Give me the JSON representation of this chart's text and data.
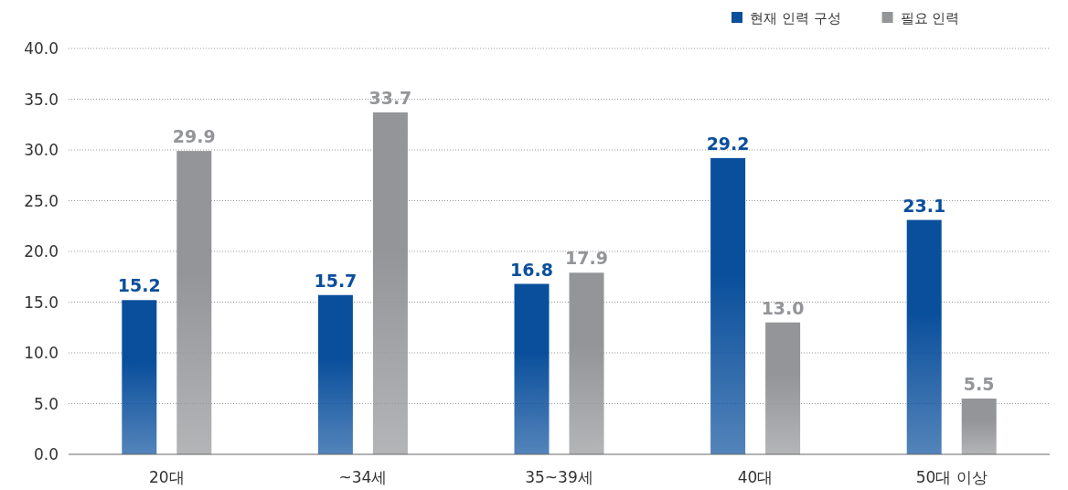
{
  "chart_data": {
    "type": "bar",
    "categories": [
      "20대",
      "~34세",
      "35~39세",
      "40대",
      "50대 이상"
    ],
    "series": [
      {
        "name": "현재 인력 구성",
        "color": "#0a4f9c",
        "values": [
          15.2,
          15.7,
          16.8,
          29.2,
          23.1
        ],
        "value_labels": [
          "15.2",
          "15.7",
          "16.8",
          "29.2",
          "23.1"
        ]
      },
      {
        "name": "필요 인력",
        "color": "#939598",
        "values": [
          29.9,
          33.7,
          17.9,
          13.0,
          5.5
        ],
        "value_labels": [
          "29.9",
          "33.7",
          "17.9",
          "13.0",
          "5.5"
        ]
      }
    ],
    "ylim": [
      0,
      40
    ],
    "yticks": [
      {
        "value": 0,
        "label": "0.0"
      },
      {
        "value": 5,
        "label": "5.0"
      },
      {
        "value": 10,
        "label": "10.0"
      },
      {
        "value": 15,
        "label": "15.0"
      },
      {
        "value": 20,
        "label": "20.0"
      },
      {
        "value": 25,
        "label": "25.0"
      },
      {
        "value": 30,
        "label": "30.0"
      },
      {
        "value": 35,
        "label": "35.0"
      },
      {
        "value": 40,
        "label": "40.0"
      }
    ],
    "grid": "y",
    "legend": "top right"
  }
}
